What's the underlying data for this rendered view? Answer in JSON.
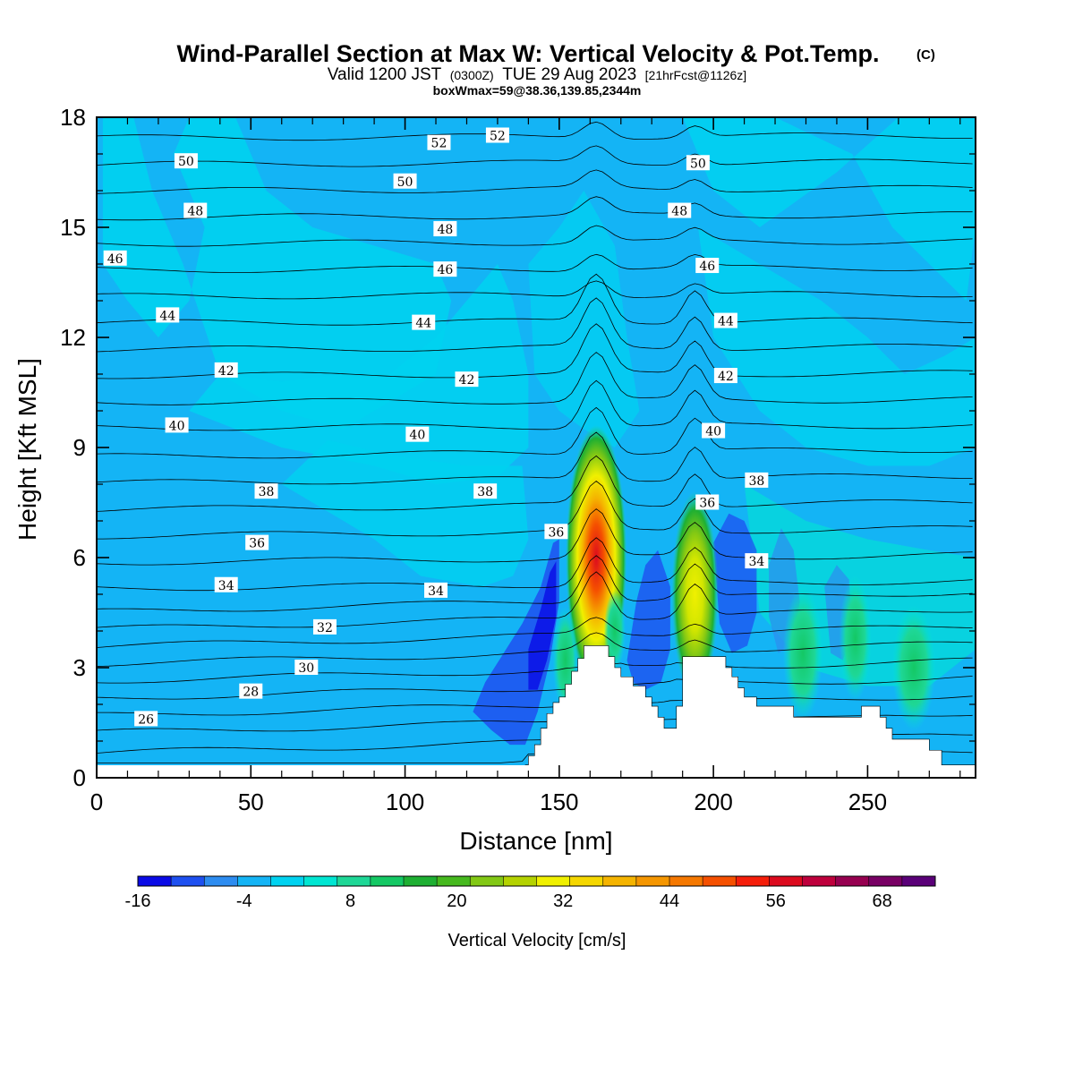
{
  "chart_data": {
    "type": "heatmap",
    "title": "Wind-Parallel Section at Max W: Vertical Velocity & Pot.Temp.",
    "title_mark": "(C)",
    "subtitle": {
      "valid": "Valid 1200 JST",
      "utc": "(0300Z)",
      "date": "TUE 29 Aug 2023",
      "forecast": "[21hrFcst@1126z]"
    },
    "box_info": "boxWmax=59@38.36,139.85,2344m",
    "xlabel": "Distance [nm]",
    "ylabel": "Height [Kft MSL]",
    "xlim": [
      0,
      285
    ],
    "ylim": [
      0,
      18
    ],
    "x_ticks": [
      "0",
      "50",
      "100",
      "150",
      "200",
      "250"
    ],
    "x_tick_values": [
      0,
      50,
      100,
      150,
      200,
      250
    ],
    "y_ticks": [
      "0",
      "3",
      "6",
      "9",
      "12",
      "15",
      "18"
    ],
    "y_tick_values": [
      0,
      3,
      6,
      9,
      12,
      15,
      18
    ],
    "colorbar": {
      "label": "Vertical Velocity [cm/s]",
      "min": -16,
      "max": 74,
      "step": 4,
      "tick_labels": [
        "-16",
        "-4",
        "8",
        "20",
        "32",
        "44",
        "56",
        "68"
      ],
      "tick_values": [
        -16,
        -4,
        8,
        20,
        32,
        44,
        56,
        68
      ],
      "colors": [
        "#0a0ae6",
        "#1e50f0",
        "#2d8cf0",
        "#14b4f5",
        "#00d2f0",
        "#00e6d2",
        "#1ed796",
        "#14c864",
        "#1eaf32",
        "#46b91e",
        "#82c814",
        "#b4d200",
        "#f0f000",
        "#f5d700",
        "#f5b400",
        "#f59600",
        "#f57800",
        "#f55000",
        "#f51e0a",
        "#dc0a1e",
        "#be003c",
        "#960050",
        "#780064",
        "#5a0078"
      ]
    },
    "theta_contours": {
      "levels": [
        24,
        25,
        26,
        27,
        28,
        29,
        30,
        31,
        32,
        33,
        34,
        35,
        36,
        37,
        38,
        39,
        40,
        41,
        42,
        43,
        44,
        45,
        46,
        47,
        48,
        49,
        50,
        51,
        52,
        53
      ],
      "labels": [
        {
          "text": "26",
          "x": 16,
          "y": 1.6
        },
        {
          "text": "28",
          "x": 50,
          "y": 2.35
        },
        {
          "text": "30",
          "x": 68,
          "y": 3.0
        },
        {
          "text": "32",
          "x": 74,
          "y": 4.1
        },
        {
          "text": "34",
          "x": 42,
          "y": 5.25
        },
        {
          "text": "34",
          "x": 110,
          "y": 5.1
        },
        {
          "text": "34",
          "x": 214,
          "y": 5.9
        },
        {
          "text": "36",
          "x": 52,
          "y": 6.4
        },
        {
          "text": "36",
          "x": 149,
          "y": 6.7
        },
        {
          "text": "36",
          "x": 198,
          "y": 7.5
        },
        {
          "text": "38",
          "x": 55,
          "y": 7.8
        },
        {
          "text": "38",
          "x": 126,
          "y": 7.8
        },
        {
          "text": "38",
          "x": 214,
          "y": 8.1
        },
        {
          "text": "40",
          "x": 26,
          "y": 9.6
        },
        {
          "text": "40",
          "x": 104,
          "y": 9.35
        },
        {
          "text": "40",
          "x": 200,
          "y": 9.45
        },
        {
          "text": "42",
          "x": 42,
          "y": 11.1
        },
        {
          "text": "42",
          "x": 120,
          "y": 10.85
        },
        {
          "text": "42",
          "x": 204,
          "y": 10.95
        },
        {
          "text": "44",
          "x": 23,
          "y": 12.6
        },
        {
          "text": "44",
          "x": 106,
          "y": 12.4
        },
        {
          "text": "44",
          "x": 204,
          "y": 12.45
        },
        {
          "text": "46",
          "x": 6,
          "y": 14.15
        },
        {
          "text": "46",
          "x": 113,
          "y": 13.85
        },
        {
          "text": "46",
          "x": 198,
          "y": 13.95
        },
        {
          "text": "48",
          "x": 32,
          "y": 15.45
        },
        {
          "text": "48",
          "x": 113,
          "y": 14.95
        },
        {
          "text": "48",
          "x": 189,
          "y": 15.45
        },
        {
          "text": "50",
          "x": 29,
          "y": 16.8
        },
        {
          "text": "50",
          "x": 100,
          "y": 16.25
        },
        {
          "text": "50",
          "x": 195,
          "y": 16.75
        },
        {
          "text": "52",
          "x": 111,
          "y": 17.3
        },
        {
          "text": "52",
          "x": 130,
          "y": 17.5
        }
      ]
    },
    "updraft_cores": [
      {
        "x": 162,
        "y": 5.8,
        "peak": 59
      },
      {
        "x": 194,
        "y": 5.2,
        "peak": 34
      }
    ],
    "terrain": [
      [
        139,
        0.35
      ],
      [
        140,
        0.6
      ],
      [
        142,
        0.9
      ],
      [
        144,
        1.35
      ],
      [
        146,
        1.75
      ],
      [
        148,
        2.05
      ],
      [
        150,
        2.2
      ],
      [
        152,
        2.55
      ],
      [
        154,
        2.9
      ],
      [
        156,
        3.25
      ],
      [
        158,
        3.6
      ],
      [
        160,
        3.6
      ],
      [
        162,
        3.6
      ],
      [
        164,
        3.6
      ],
      [
        166,
        3.3
      ],
      [
        168,
        3.0
      ],
      [
        170,
        2.75
      ],
      [
        172,
        2.75
      ],
      [
        174,
        2.5
      ],
      [
        176,
        2.5
      ],
      [
        178,
        2.2
      ],
      [
        180,
        1.95
      ],
      [
        182,
        1.65
      ],
      [
        184,
        1.35
      ],
      [
        186,
        1.35
      ],
      [
        188,
        1.95
      ],
      [
        190,
        3.3
      ],
      [
        192,
        3.3
      ],
      [
        194,
        3.3
      ],
      [
        196,
        3.3
      ],
      [
        198,
        3.3
      ],
      [
        200,
        3.3
      ],
      [
        202,
        3.3
      ],
      [
        204,
        3.0
      ],
      [
        206,
        2.75
      ],
      [
        208,
        2.45
      ],
      [
        210,
        2.2
      ],
      [
        212,
        2.2
      ],
      [
        214,
        1.95
      ],
      [
        216,
        1.95
      ],
      [
        218,
        1.95
      ],
      [
        220,
        1.95
      ],
      [
        222,
        1.95
      ],
      [
        224,
        1.95
      ],
      [
        226,
        1.65
      ],
      [
        228,
        1.65
      ],
      [
        230,
        1.65
      ],
      [
        232,
        1.65
      ],
      [
        234,
        1.65
      ],
      [
        236,
        1.65
      ],
      [
        238,
        1.65
      ],
      [
        240,
        1.65
      ],
      [
        242,
        1.65
      ],
      [
        244,
        1.65
      ],
      [
        246,
        1.65
      ],
      [
        248,
        1.95
      ],
      [
        250,
        1.95
      ],
      [
        252,
        1.95
      ],
      [
        254,
        1.65
      ],
      [
        256,
        1.35
      ],
      [
        258,
        1.05
      ],
      [
        260,
        1.05
      ],
      [
        262,
        1.05
      ],
      [
        264,
        1.05
      ],
      [
        266,
        1.05
      ],
      [
        268,
        1.05
      ],
      [
        270,
        0.75
      ],
      [
        272,
        0.75
      ],
      [
        274,
        0.35
      ],
      [
        285,
        0.35
      ]
    ]
  }
}
